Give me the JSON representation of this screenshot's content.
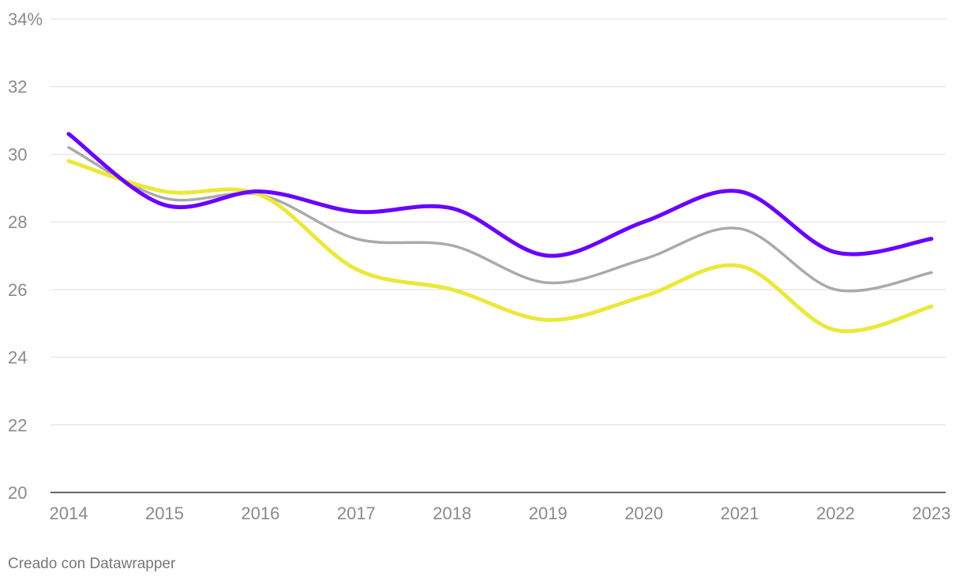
{
  "chart_data": {
    "type": "line",
    "title": "",
    "xlabel": "",
    "ylabel": "",
    "x": [
      "2014",
      "2015",
      "2016",
      "2017",
      "2018",
      "2019",
      "2020",
      "2021",
      "2022",
      "2023"
    ],
    "ylim": [
      20,
      34
    ],
    "y_ticks": [
      20,
      22,
      24,
      26,
      28,
      30,
      32,
      34
    ],
    "y_tick_labels": [
      "20",
      "22",
      "24",
      "26",
      "28",
      "30",
      "32",
      "34%"
    ],
    "grid": true,
    "smooth": true,
    "series": [
      {
        "values": [
          30.2,
          28.7,
          28.8,
          27.5,
          27.3,
          26.2,
          26.9,
          27.8,
          26.0,
          26.5
        ],
        "color": "#aaaaaa",
        "width": 3.5
      },
      {
        "values": [
          29.8,
          28.9,
          28.8,
          26.6,
          26.0,
          25.1,
          25.8,
          26.7,
          24.8,
          25.5
        ],
        "color": "#ebe83c",
        "width": 5
      },
      {
        "values": [
          30.6,
          28.5,
          28.9,
          28.3,
          28.4,
          27.0,
          28.0,
          28.9,
          27.1,
          27.5
        ],
        "color": "#6a00ff",
        "width": 5
      }
    ]
  },
  "footer": {
    "credit": "Creado con Datawrapper"
  }
}
